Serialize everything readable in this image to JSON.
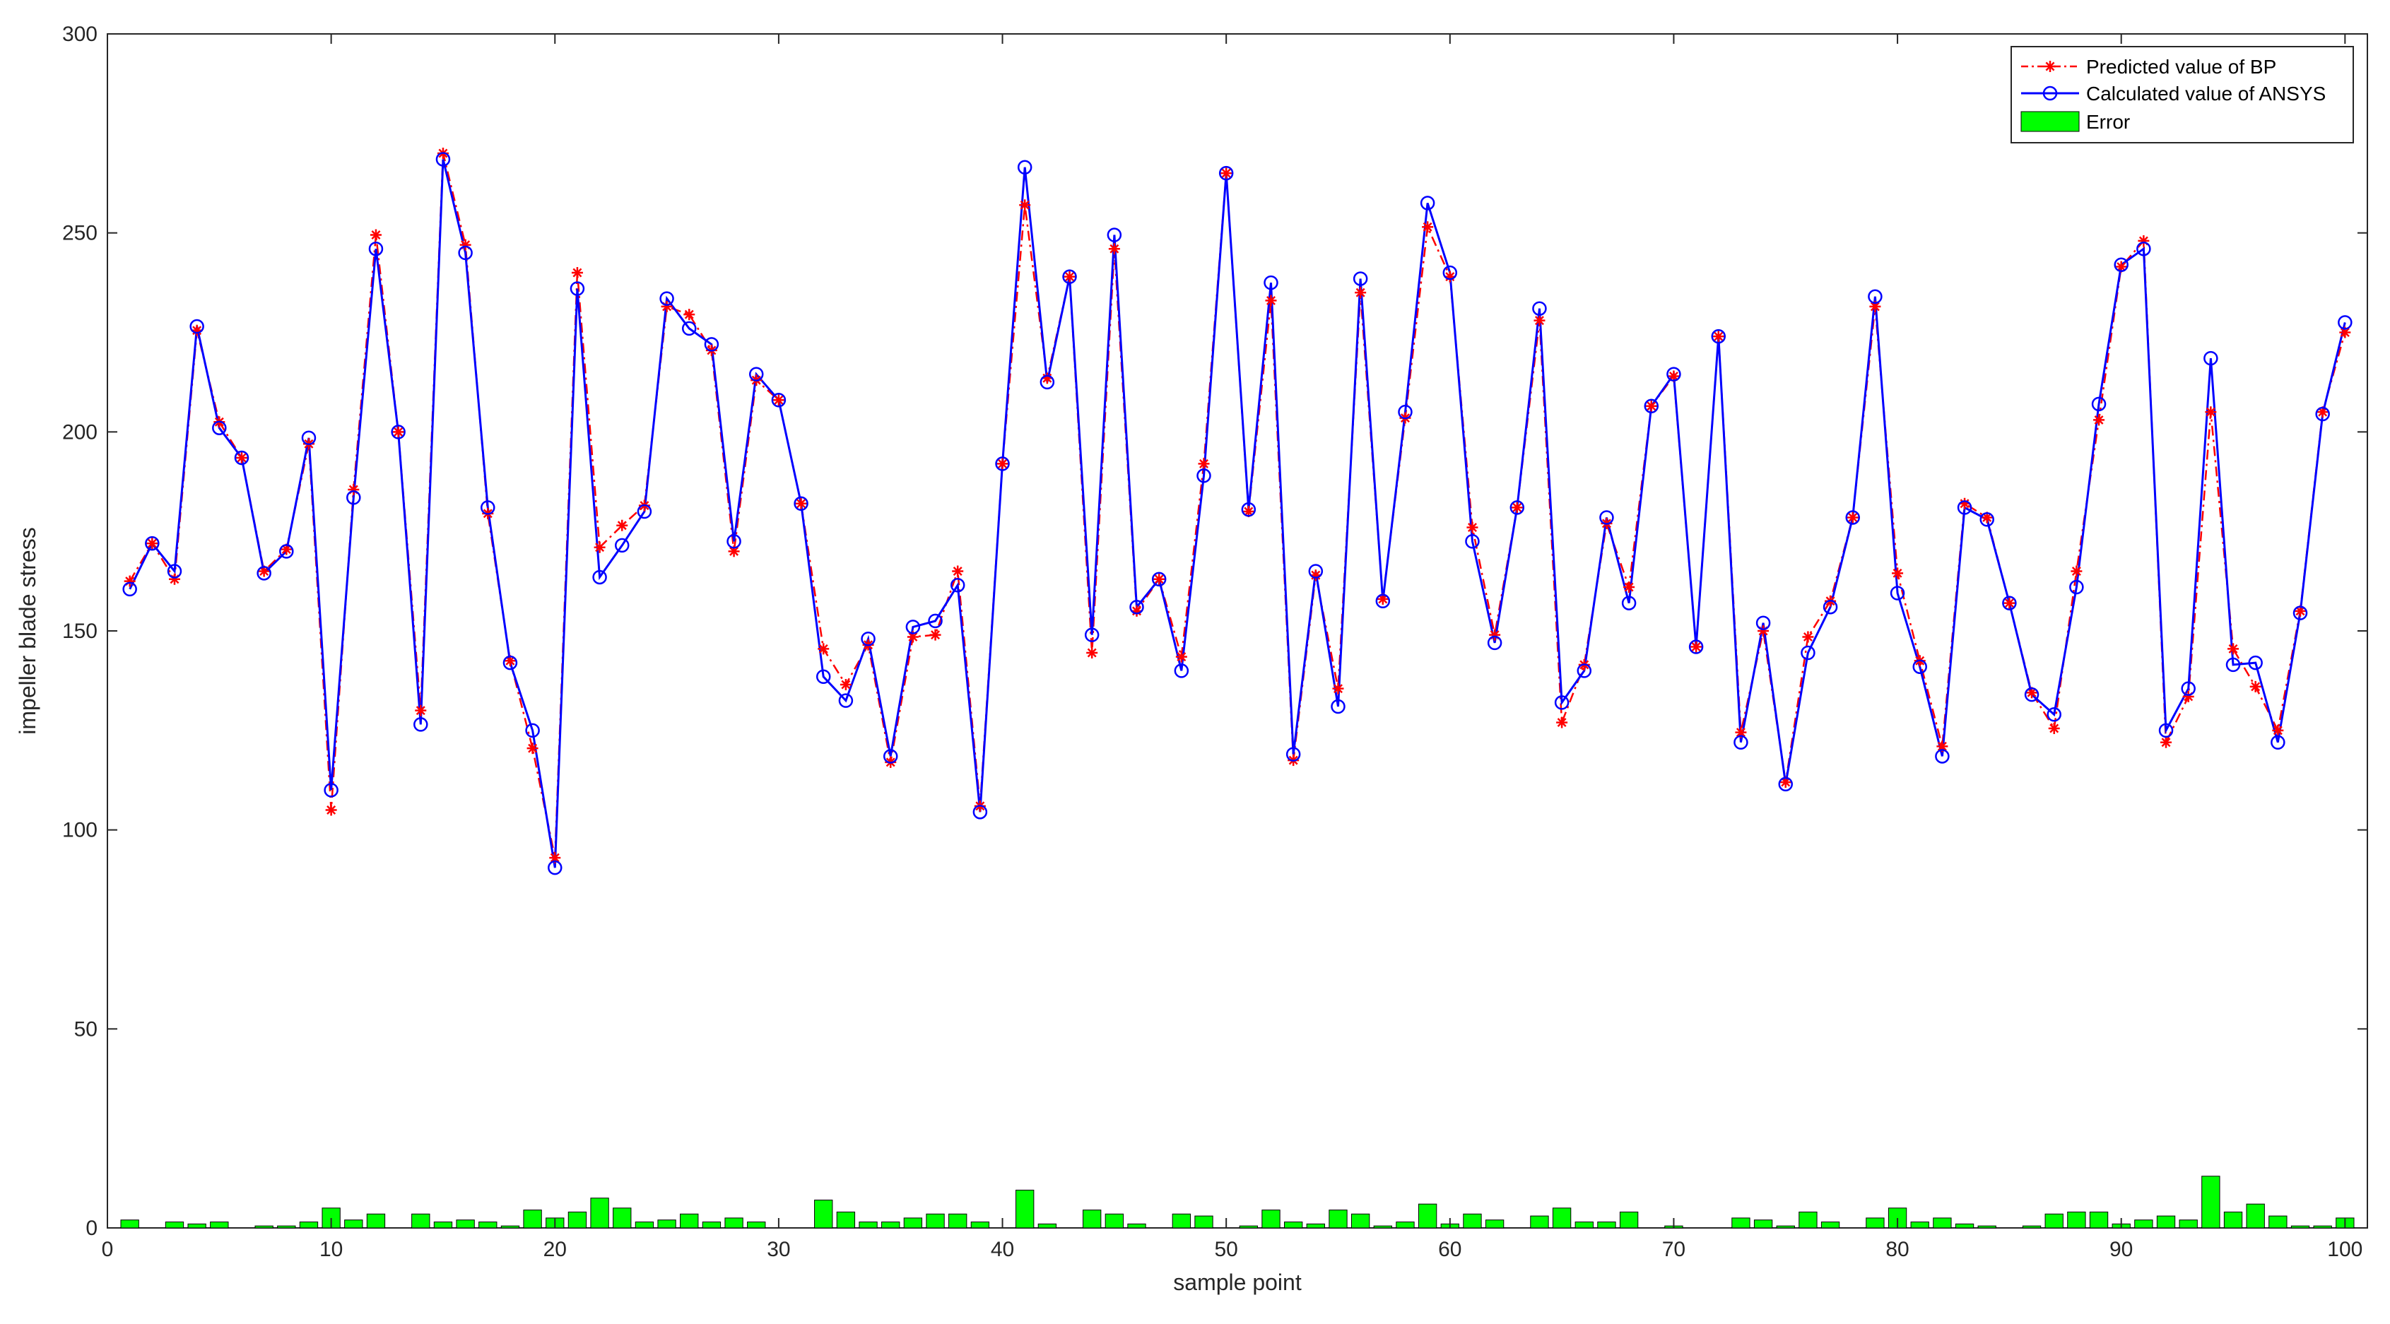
{
  "chart_data": {
    "type": "line",
    "title": "",
    "xlabel": "sample point",
    "ylabel": "impeller blade stress",
    "xlim": [
      0,
      101
    ],
    "ylim": [
      0,
      300
    ],
    "xticks": [
      0,
      10,
      20,
      30,
      40,
      50,
      60,
      70,
      80,
      90,
      100
    ],
    "yticks": [
      0,
      50,
      100,
      150,
      200,
      250,
      300
    ],
    "grid": false,
    "legend_position": "top-right",
    "x": [
      1,
      2,
      3,
      4,
      5,
      6,
      7,
      8,
      9,
      10,
      11,
      12,
      13,
      14,
      15,
      16,
      17,
      18,
      19,
      20,
      21,
      22,
      23,
      24,
      25,
      26,
      27,
      28,
      29,
      30,
      31,
      32,
      33,
      34,
      35,
      36,
      37,
      38,
      39,
      40,
      41,
      42,
      43,
      44,
      45,
      46,
      47,
      48,
      49,
      50,
      51,
      52,
      53,
      54,
      55,
      56,
      57,
      58,
      59,
      60,
      61,
      62,
      63,
      64,
      65,
      66,
      67,
      68,
      69,
      70,
      71,
      72,
      73,
      74,
      75,
      76,
      77,
      78,
      79,
      80,
      81,
      82,
      83,
      84,
      85,
      86,
      87,
      88,
      89,
      90,
      91,
      92,
      93,
      94,
      95,
      96,
      97,
      98,
      99,
      100
    ],
    "series": [
      {
        "name": "Predicted value of BP",
        "kind": "line",
        "color": "#ff0000",
        "line_style": "dash-dot",
        "marker": "asterisk",
        "values": [
          162.5,
          172,
          163,
          225.5,
          202.5,
          193.5,
          165,
          170.5,
          197,
          105,
          185.5,
          249.5,
          200,
          130,
          270,
          247,
          179.5,
          142.5,
          120.5,
          93,
          240,
          171,
          176.5,
          181.5,
          231.5,
          229.5,
          220.5,
          170,
          213,
          208,
          182,
          145.5,
          136.5,
          146.5,
          117,
          148.5,
          149,
          165,
          106,
          192,
          257,
          213.5,
          239,
          144.5,
          246,
          155,
          163,
          143.5,
          192,
          265,
          180,
          233,
          117.5,
          164,
          135.5,
          235,
          158,
          203.5,
          251.5,
          239,
          176,
          149,
          181,
          228,
          127,
          141.5,
          177,
          161,
          206.5,
          214,
          146,
          224,
          124.5,
          150,
          112,
          148.5,
          157.5,
          178.5,
          231.5,
          164.5,
          142.5,
          121,
          182,
          178.5,
          157,
          134.5,
          125.5,
          165,
          203,
          241.5,
          248,
          122,
          133.5,
          205,
          145.5,
          136,
          125,
          155,
          205,
          225
        ]
      },
      {
        "name": "Calculated value of ANSYS",
        "kind": "line",
        "color": "#0000ff",
        "line_style": "solid",
        "marker": "circle",
        "values": [
          160.5,
          172,
          165,
          226.5,
          201,
          193.5,
          164.5,
          170,
          198.5,
          110,
          183.5,
          246,
          200,
          126.5,
          268.5,
          245,
          181,
          142,
          125,
          90.5,
          236,
          163.5,
          171.5,
          180,
          233.5,
          226,
          222,
          172.5,
          214.5,
          208,
          182,
          138.5,
          132.5,
          148,
          118.5,
          151,
          152.5,
          161.5,
          104.5,
          192,
          266.5,
          212.5,
          239,
          149,
          249.5,
          156,
          163,
          140,
          189,
          265,
          180.5,
          237.5,
          119,
          165,
          131,
          238.5,
          157.5,
          205,
          257.5,
          240,
          172.5,
          147,
          181,
          231,
          132,
          140,
          178.5,
          157,
          206.5,
          214.5,
          146,
          224,
          122,
          152,
          111.5,
          144.5,
          156,
          178.5,
          234,
          159.5,
          141,
          118.5,
          181,
          178,
          157,
          134,
          129,
          161,
          207,
          242,
          246,
          125,
          135.5,
          218.5,
          141.5,
          142,
          122,
          154.5,
          204.5,
          227.5
        ]
      },
      {
        "name": "Error",
        "kind": "bar",
        "color": "#00ff00",
        "values": [
          2,
          0,
          1.5,
          1,
          1.5,
          0,
          0.5,
          0.5,
          1.5,
          5,
          2,
          3.5,
          0,
          3.5,
          1.5,
          2,
          1.5,
          0.5,
          4.5,
          2.5,
          4,
          7.5,
          5,
          1.5,
          2,
          3.5,
          1.5,
          2.5,
          1.5,
          0,
          0,
          7,
          4,
          1.5,
          1.5,
          2.5,
          3.5,
          3.5,
          1.5,
          0,
          9.5,
          1,
          0,
          4.5,
          3.5,
          1,
          0,
          3.5,
          3,
          0,
          0.5,
          4.5,
          1.5,
          1,
          4.5,
          3.5,
          0.5,
          1.5,
          6,
          1,
          3.5,
          2,
          0,
          3,
          5,
          1.5,
          1.5,
          4,
          0,
          0.5,
          0,
          0,
          2.5,
          2,
          0.5,
          4,
          1.5,
          0,
          2.5,
          5,
          1.5,
          2.5,
          1,
          0.5,
          0,
          0.5,
          3.5,
          4,
          4,
          1,
          2,
          3,
          2,
          13,
          4,
          6,
          3,
          0.5,
          0.5,
          2.5
        ]
      }
    ]
  }
}
